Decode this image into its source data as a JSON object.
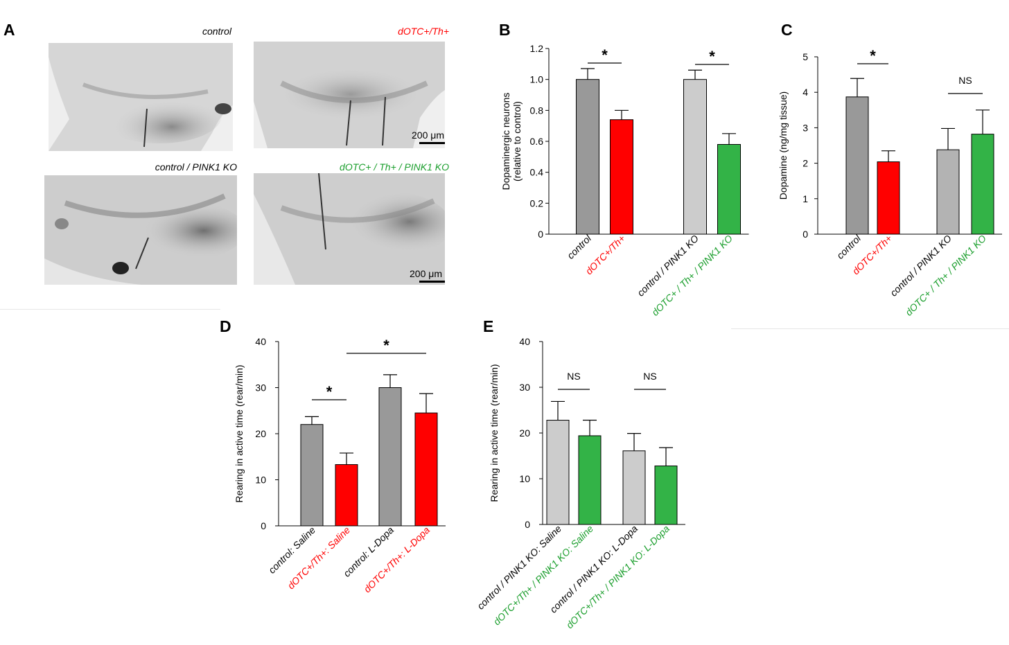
{
  "panel_letters": {
    "a": "A",
    "b": "B",
    "c": "C",
    "d": "D",
    "e": "E"
  },
  "micrographs": {
    "tl": {
      "label": "control",
      "label_color": "#000000"
    },
    "tr": {
      "label": "dOTC+/Th+",
      "label_color": "#ff0000",
      "scale": "200 μm"
    },
    "bl": {
      "label": "control / PINK1 KO",
      "label_color": "#000000"
    },
    "br": {
      "label": "dOTC+ / Th+ / PINK1 KO",
      "label_color": "#1a9e2c",
      "scale": "200 μm"
    }
  },
  "chart_data": [
    {
      "id": "B",
      "type": "bar",
      "ylabel": [
        "Dopaminergic neurons",
        "(relative to control)"
      ],
      "ylim": [
        0,
        1.2
      ],
      "yticks": [
        "0",
        "0.2",
        "0.4",
        "0.6",
        "0.8",
        "1.0",
        "1.2"
      ],
      "categories": [
        "control",
        "dOTC+/Th+",
        "control / PINK1 KO",
        "dOTC+ / Th+ / PINK1 KO"
      ],
      "values": [
        1.0,
        0.74,
        1.0,
        0.58
      ],
      "errors": [
        0.07,
        0.06,
        0.06,
        0.07
      ],
      "colors": [
        "#999999",
        "#ff0000",
        "#cccccc",
        "#33b347"
      ],
      "label_colors": [
        "#000000",
        "#ff0000",
        "#000000",
        "#1a9e2c"
      ],
      "significance": [
        {
          "between": [
            0,
            1
          ],
          "label": "*"
        },
        {
          "between": [
            2,
            3
          ],
          "label": "*"
        }
      ]
    },
    {
      "id": "C",
      "type": "bar",
      "ylabel": [
        "Dopamine (ng/mg tissue)"
      ],
      "ylim": [
        0,
        5
      ],
      "yticks": [
        "0",
        "1",
        "2",
        "3",
        "4",
        "5"
      ],
      "categories": [
        "control",
        "dOTC+/Th+",
        "control / PINK1 KO",
        "dOTC+ / Th+ / PINK1 KO"
      ],
      "values": [
        3.87,
        2.04,
        2.38,
        2.82
      ],
      "errors": [
        0.52,
        0.31,
        0.6,
        0.68
      ],
      "colors": [
        "#999999",
        "#ff0000",
        "#b3b3b3",
        "#33b347"
      ],
      "label_colors": [
        "#000000",
        "#ff0000",
        "#000000",
        "#1a9e2c"
      ],
      "significance": [
        {
          "between": [
            0,
            1
          ],
          "label": "*"
        },
        {
          "between": [
            2,
            3
          ],
          "label": "NS"
        }
      ]
    },
    {
      "id": "D",
      "type": "bar",
      "ylabel": [
        "Rearing in active time (rear/min)"
      ],
      "ylim": [
        0,
        40
      ],
      "yticks": [
        "0",
        "10",
        "20",
        "30",
        "40"
      ],
      "categories": [
        "control: Saline",
        "dOTC+/Th+: Saline",
        "control: L-Dopa",
        "dOTC+/Th+: L-Dopa"
      ],
      "values": [
        22,
        13.3,
        30,
        24.5
      ],
      "errors": [
        1.7,
        2.5,
        2.8,
        4.2
      ],
      "colors": [
        "#999999",
        "#ff0000",
        "#999999",
        "#ff0000"
      ],
      "label_colors": [
        "#000000",
        "#ff0000",
        "#000000",
        "#ff0000"
      ],
      "significance": [
        {
          "between": [
            0,
            1
          ],
          "label": "*"
        },
        {
          "between": [
            1,
            3
          ],
          "label": "*"
        }
      ]
    },
    {
      "id": "E",
      "type": "bar",
      "ylabel": [
        "Rearing in active time (rear/min)"
      ],
      "ylim": [
        0,
        40
      ],
      "yticks": [
        "0",
        "10",
        "20",
        "30",
        "40"
      ],
      "categories": [
        "control / PINK1 KO: Saline",
        "dOTC+/Th+ / PINK1 KO: Saline",
        "control / PINK1 KO: L-Dopa",
        "dOTC+/Th+ / PINK1 KO: L-Dopa"
      ],
      "values": [
        22.8,
        19.4,
        16.1,
        12.8
      ],
      "errors": [
        4.1,
        3.4,
        3.8,
        4.0
      ],
      "colors": [
        "#cccccc",
        "#33b347",
        "#cccccc",
        "#33b347"
      ],
      "label_colors": [
        "#000000",
        "#1a9e2c",
        "#000000",
        "#1a9e2c"
      ],
      "significance": [
        {
          "between": [
            0,
            1
          ],
          "label": "NS"
        },
        {
          "between": [
            2,
            3
          ],
          "label": "NS"
        }
      ]
    }
  ]
}
